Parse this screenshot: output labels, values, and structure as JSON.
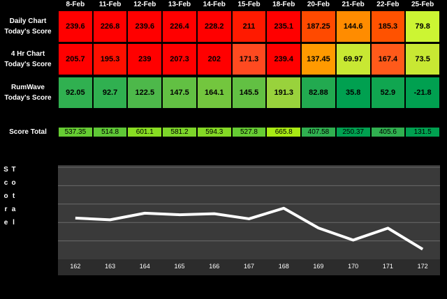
{
  "table": {
    "columns": [
      "8-Feb",
      "11-Feb",
      "12-Feb",
      "13-Feb",
      "14-Feb",
      "15-Feb",
      "18-Feb",
      "20-Feb",
      "21-Feb",
      "22-Feb",
      "25-Feb"
    ],
    "rows": [
      {
        "label": [
          "Daily Chart",
          "Today's Score"
        ],
        "values": [
          239.6,
          226.8,
          239.6,
          226.4,
          228.2,
          211,
          235.1,
          187.25,
          144.6,
          185.3,
          79.8
        ],
        "colors": [
          "#ff0000",
          "#ff0000",
          "#ff0000",
          "#ff0000",
          "#ff0000",
          "#ff1a00",
          "#ff0000",
          "#ff4a00",
          "#ff8c00",
          "#ff5200",
          "#ccf533"
        ]
      },
      {
        "label": [
          "4 Hr Chart",
          "Today's Score"
        ],
        "values": [
          205.7,
          195.3,
          239,
          207.3,
          202,
          171.3,
          239.4,
          137.45,
          69.97,
          167.4,
          73.5
        ],
        "colors": [
          "#ff0000",
          "#ff1000",
          "#ff0000",
          "#ff0000",
          "#ff0000",
          "#ff4a20",
          "#ff0000",
          "#ff9a00",
          "#c8e833",
          "#ff5a1a",
          "#c8e833"
        ]
      },
      {
        "label": [
          "RumWave",
          "Today's Score"
        ],
        "values": [
          92.05,
          92.7,
          122.5,
          147.5,
          164.1,
          145.5,
          191.3,
          82.88,
          35.8,
          52.9,
          -21.8
        ],
        "colors": [
          "#30b050",
          "#30b050",
          "#4db84a",
          "#62c043",
          "#73c63e",
          "#62c043",
          "#99d23c",
          "#22aa50",
          "#00a050",
          "#10a650",
          "#00a050"
        ]
      }
    ],
    "total": {
      "label": "Score Total",
      "values": [
        537.35,
        514.8,
        601.1,
        581.2,
        594.3,
        527.8,
        665.8,
        407.58,
        250.37,
        405.6,
        131.5
      ],
      "colors": [
        "#66cc33",
        "#5fc836",
        "#88dd22",
        "#7dd52a",
        "#84d925",
        "#66cc33",
        "#a8ea14",
        "#30b050",
        "#00a050",
        "#30b050",
        "#00a050"
      ]
    }
  },
  "chart_data": {
    "type": "line",
    "ylabel": "Total Score",
    "categories": [
      162,
      163,
      164,
      165,
      166,
      167,
      168,
      169,
      170,
      171,
      172
    ],
    "values": [
      537.35,
      514.8,
      601.1,
      581.2,
      594.3,
      527.8,
      665.8,
      407.58,
      250.37,
      405.6,
      131.5
    ],
    "color": "#ffffff",
    "ylim": [
      0,
      1200
    ]
  }
}
